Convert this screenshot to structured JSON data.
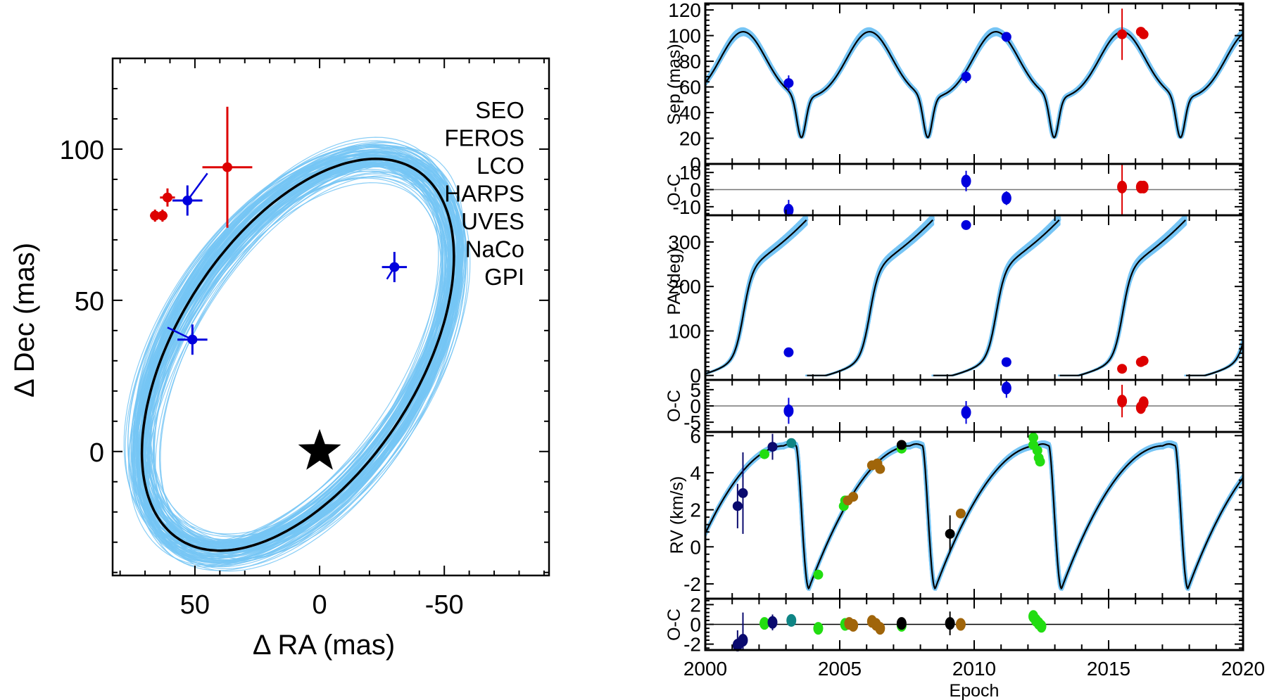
{
  "chart_data": [
    {
      "type": "scatter",
      "panel": "orbit-sky",
      "xlabel": "Δ RA (mas)",
      "ylabel": "Δ Dec (mas)",
      "xlim": [
        83,
        -92
      ],
      "ylim": [
        -41,
        130
      ],
      "xticks": [
        50,
        0,
        -50
      ],
      "yticks": [
        0,
        50,
        100
      ],
      "orbit_best_fit": {
        "color": "#000000",
        "center_ra": 8.7,
        "center_dec": 32.0,
        "semi_major": 78,
        "semi_minor": 45,
        "angle_deg": 133
      },
      "orbit_samples_color": "#76c5f5",
      "star_marker": {
        "ra": 0,
        "dec": 0,
        "symbol": "star"
      },
      "legend": {
        "placement": "top-right",
        "entries": [
          {
            "label": "SEO",
            "color": "#0a0a6e"
          },
          {
            "label": "FEROS",
            "color": "#22dd11"
          },
          {
            "label": "LCO",
            "color": "#0f8585"
          },
          {
            "label": "HARPS",
            "color": "#a0650a"
          },
          {
            "label": "UVES",
            "color": "#000000"
          },
          {
            "label": "NaCo",
            "color": "#0000dd"
          },
          {
            "label": "GPI",
            "color": "#dd0000"
          }
        ]
      },
      "points": [
        {
          "inst": "GPI",
          "ra": 37,
          "dec": 94,
          "era": 10,
          "edec": 20
        },
        {
          "inst": "GPI",
          "ra": 61,
          "dec": 84,
          "era": 3,
          "edec": 3
        },
        {
          "inst": "GPI",
          "ra": 66,
          "dec": 78,
          "era": 2,
          "edec": 2
        },
        {
          "inst": "GPI",
          "ra": 63,
          "dec": 78,
          "era": 2,
          "edec": 2
        },
        {
          "inst": "NaCo",
          "ra": 53,
          "dec": 83,
          "era": 6,
          "edec": 5,
          "model_ra": 45,
          "model_dec": 92
        },
        {
          "inst": "NaCo",
          "ra": 51,
          "dec": 37,
          "era": 6,
          "edec": 5,
          "model_ra": 61,
          "model_dec": 41
        },
        {
          "inst": "NaCo",
          "ra": -30,
          "dec": 61,
          "era": 5,
          "edec": 5,
          "model_ra": -27,
          "model_dec": 57
        }
      ]
    },
    {
      "type": "line",
      "panel": "separation",
      "ylabel": "Sep (mas)",
      "xlim": [
        2000,
        2020
      ],
      "ylim": [
        0,
        125
      ],
      "yticks": [
        0,
        20,
        40,
        60,
        80,
        100,
        120
      ],
      "points": [
        {
          "inst": "NaCo",
          "x": 2003.1,
          "y": 63,
          "err": 6
        },
        {
          "inst": "NaCo",
          "x": 2009.7,
          "y": 68,
          "err": 5
        },
        {
          "inst": "NaCo",
          "x": 2011.2,
          "y": 99,
          "err": 3
        },
        {
          "inst": "GPI",
          "x": 2015.5,
          "y": 101,
          "err": 20
        },
        {
          "inst": "GPI",
          "x": 2016.2,
          "y": 103,
          "err": 2
        },
        {
          "inst": "GPI",
          "x": 2016.3,
          "y": 101,
          "err": 2
        }
      ]
    },
    {
      "type": "scatter",
      "panel": "separation-residuals",
      "ylabel": "O-C",
      "xlim": [
        2000,
        2020
      ],
      "ylim": [
        -15,
        15
      ],
      "yticks": [
        -10,
        0,
        10
      ],
      "points": [
        {
          "inst": "NaCo",
          "x": 2003.1,
          "y": -12,
          "err": 6
        },
        {
          "inst": "NaCo",
          "x": 2009.7,
          "y": 5,
          "err": 6
        },
        {
          "inst": "NaCo",
          "x": 2011.2,
          "y": -5,
          "err": 4
        },
        {
          "inst": "GPI",
          "x": 2015.5,
          "y": 1.5,
          "err": 20
        },
        {
          "inst": "GPI",
          "x": 2016.2,
          "y": 1.5,
          "err": 3
        },
        {
          "inst": "GPI",
          "x": 2016.3,
          "y": 1.5,
          "err": 3
        }
      ]
    },
    {
      "type": "line",
      "panel": "position-angle",
      "ylabel": "PA (deg)",
      "xlim": [
        2000,
        2020
      ],
      "ylim": [
        -10,
        360
      ],
      "yticks": [
        0,
        100,
        200,
        300
      ],
      "points": [
        {
          "inst": "NaCo",
          "x": 2003.1,
          "y": 52
        },
        {
          "inst": "NaCo",
          "x": 2009.7,
          "y": 338
        },
        {
          "inst": "NaCo",
          "x": 2011.2,
          "y": 30
        },
        {
          "inst": "GPI",
          "x": 2015.5,
          "y": 15
        },
        {
          "inst": "GPI",
          "x": 2016.2,
          "y": 30
        },
        {
          "inst": "GPI",
          "x": 2016.3,
          "y": 33
        }
      ]
    },
    {
      "type": "scatter",
      "panel": "position-angle-residuals",
      "ylabel": "O-C",
      "xlim": [
        2000,
        2020
      ],
      "ylim": [
        -8,
        8
      ],
      "yticks": [
        -5,
        0,
        5
      ],
      "points": [
        {
          "inst": "NaCo",
          "x": 2003.1,
          "y": -1.5,
          "err": 4
        },
        {
          "inst": "NaCo",
          "x": 2009.7,
          "y": -2,
          "err": 3.5
        },
        {
          "inst": "NaCo",
          "x": 2011.2,
          "y": 5.5,
          "err": 3
        },
        {
          "inst": "GPI",
          "x": 2015.5,
          "y": 1.5,
          "err": 5
        },
        {
          "inst": "GPI",
          "x": 2016.2,
          "y": -0.5,
          "err": 1
        },
        {
          "inst": "GPI",
          "x": 2016.3,
          "y": 1,
          "err": 1
        }
      ]
    },
    {
      "type": "line",
      "panel": "radial-velocity",
      "ylabel": "RV (km/s)",
      "xlim": [
        2000,
        2020
      ],
      "ylim": [
        -2.8,
        6.2
      ],
      "yticks": [
        -2,
        0,
        2,
        4,
        6
      ],
      "points": [
        {
          "inst": "SEO",
          "x": 2001.2,
          "y": 2.2,
          "err": 1.2
        },
        {
          "inst": "SEO",
          "x": 2001.4,
          "y": 2.9,
          "err": 2.2
        },
        {
          "inst": "FEROS",
          "x": 2002.2,
          "y": 5.0
        },
        {
          "inst": "SEO",
          "x": 2002.5,
          "y": 5.4,
          "err": 0.7
        },
        {
          "inst": "LCO",
          "x": 2003.2,
          "y": 5.6,
          "err": 0.2
        },
        {
          "inst": "FEROS",
          "x": 2004.2,
          "y": -1.5
        },
        {
          "inst": "FEROS",
          "x": 2005.15,
          "y": 2.2
        },
        {
          "inst": "FEROS",
          "x": 2005.2,
          "y": 2.5
        },
        {
          "inst": "HARPS",
          "x": 2005.3,
          "y": 2.5
        },
        {
          "inst": "HARPS",
          "x": 2005.5,
          "y": 2.7
        },
        {
          "inst": "HARPS",
          "x": 2006.2,
          "y": 4.4
        },
        {
          "inst": "HARPS",
          "x": 2006.4,
          "y": 4.5
        },
        {
          "inst": "HARPS",
          "x": 2006.5,
          "y": 4.2
        },
        {
          "inst": "FEROS",
          "x": 2007.3,
          "y": 5.3
        },
        {
          "inst": "UVES",
          "x": 2007.3,
          "y": 5.5
        },
        {
          "inst": "UVES",
          "x": 2009.1,
          "y": 0.7,
          "err": 1.0
        },
        {
          "inst": "HARPS",
          "x": 2009.5,
          "y": 1.8
        },
        {
          "inst": "FEROS",
          "x": 2012.2,
          "y": 5.9
        },
        {
          "inst": "FEROS",
          "x": 2012.2,
          "y": 5.5
        },
        {
          "inst": "FEROS",
          "x": 2012.35,
          "y": 5.2
        },
        {
          "inst": "FEROS",
          "x": 2012.4,
          "y": 4.8
        },
        {
          "inst": "FEROS",
          "x": 2012.45,
          "y": 4.6
        }
      ]
    },
    {
      "type": "scatter",
      "panel": "radial-velocity-residuals",
      "ylabel": "O-C",
      "xlabel": "Epoch",
      "xlim": [
        2000,
        2020
      ],
      "ylim": [
        -2.6,
        2.6
      ],
      "yticks": [
        -2,
        0,
        2
      ],
      "xticks": [
        2000,
        2005,
        2010,
        2015,
        2020
      ],
      "points": [
        {
          "inst": "SEO",
          "x": 2001.2,
          "y": -2.1,
          "err": 1.5
        },
        {
          "inst": "SEO",
          "x": 2001.4,
          "y": -1.6,
          "err": 2.8
        },
        {
          "inst": "FEROS",
          "x": 2002.2,
          "y": 0.1
        },
        {
          "inst": "SEO",
          "x": 2002.5,
          "y": 0.2,
          "err": 0.8
        },
        {
          "inst": "LCO",
          "x": 2003.2,
          "y": 0.4
        },
        {
          "inst": "FEROS",
          "x": 2004.2,
          "y": -0.4
        },
        {
          "inst": "FEROS",
          "x": 2005.2,
          "y": 0.0
        },
        {
          "inst": "HARPS",
          "x": 2005.35,
          "y": 0.1
        },
        {
          "inst": "HARPS",
          "x": 2005.5,
          "y": -0.1
        },
        {
          "inst": "HARPS",
          "x": 2006.2,
          "y": 0.3
        },
        {
          "inst": "HARPS",
          "x": 2006.35,
          "y": 0.0
        },
        {
          "inst": "HARPS",
          "x": 2006.5,
          "y": -0.4
        },
        {
          "inst": "FEROS",
          "x": 2007.3,
          "y": -0.1
        },
        {
          "inst": "UVES",
          "x": 2007.3,
          "y": 0.1
        },
        {
          "inst": "UVES",
          "x": 2009.1,
          "y": 0.1,
          "err": 1.2
        },
        {
          "inst": "HARPS",
          "x": 2009.5,
          "y": 0.0
        },
        {
          "inst": "FEROS",
          "x": 2012.2,
          "y": 0.8
        },
        {
          "inst": "FEROS",
          "x": 2012.3,
          "y": 0.4
        },
        {
          "inst": "FEROS",
          "x": 2012.4,
          "y": 0.1
        },
        {
          "inst": "FEROS",
          "x": 2012.5,
          "y": -0.2
        }
      ]
    }
  ],
  "labels": {
    "ra_axis": "Δ RA (mas)",
    "dec_axis": "Δ Dec (mas)",
    "sep_axis": "Sep (mas)",
    "oc_axis": "O-C",
    "pa_axis": "PA (deg)",
    "rv_axis": "RV (km/s)",
    "epoch_axis": "Epoch"
  }
}
